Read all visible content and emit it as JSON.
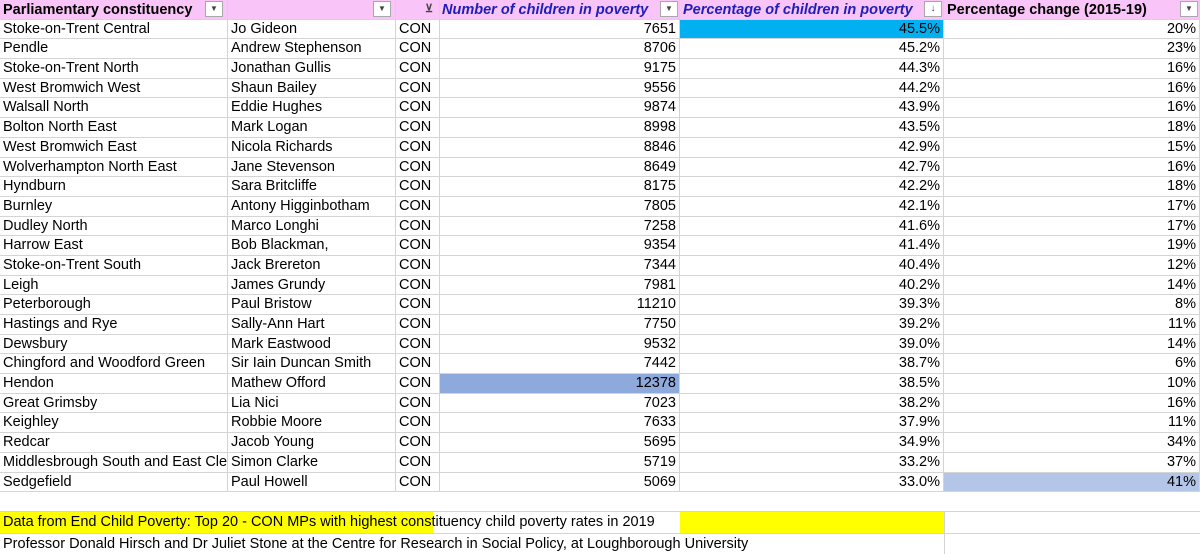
{
  "headers": {
    "constituency": "Parliamentary constituency",
    "mp": "",
    "party": "",
    "children": "Number of children in poverty",
    "percentage": "Percentage of children in poverty",
    "change": "Percentage change (2015-19)"
  },
  "rows": [
    {
      "constituency": "Stoke-on-Trent Central",
      "mp": "Jo Gideon",
      "party": "CON",
      "children": "7651",
      "percentage": "45.5%",
      "change": "20%"
    },
    {
      "constituency": "Pendle",
      "mp": "Andrew Stephenson",
      "party": "CON",
      "children": "8706",
      "percentage": "45.2%",
      "change": "23%"
    },
    {
      "constituency": "Stoke-on-Trent North",
      "mp": "Jonathan Gullis",
      "party": "CON",
      "children": "9175",
      "percentage": "44.3%",
      "change": "16%"
    },
    {
      "constituency": "West Bromwich West",
      "mp": "Shaun Bailey",
      "party": "CON",
      "children": "9556",
      "percentage": "44.2%",
      "change": "16%"
    },
    {
      "constituency": "Walsall North",
      "mp": "Eddie Hughes",
      "party": "CON",
      "children": "9874",
      "percentage": "43.9%",
      "change": "16%"
    },
    {
      "constituency": "Bolton North East",
      "mp": "Mark Logan",
      "party": "CON",
      "children": "8998",
      "percentage": "43.5%",
      "change": "18%"
    },
    {
      "constituency": "West Bromwich East",
      "mp": "Nicola Richards",
      "party": "CON",
      "children": "8846",
      "percentage": "42.9%",
      "change": "15%"
    },
    {
      "constituency": "Wolverhampton North East",
      "mp": "Jane Stevenson",
      "party": "CON",
      "children": "8649",
      "percentage": "42.7%",
      "change": "16%"
    },
    {
      "constituency": "Hyndburn",
      "mp": "Sara Britcliffe",
      "party": "CON",
      "children": "8175",
      "percentage": "42.2%",
      "change": "18%"
    },
    {
      "constituency": "Burnley",
      "mp": "Antony Higginbotham",
      "party": "CON",
      "children": "7805",
      "percentage": "42.1%",
      "change": "17%"
    },
    {
      "constituency": "Dudley North",
      "mp": "Marco Longhi",
      "party": "CON",
      "children": "7258",
      "percentage": "41.6%",
      "change": "17%"
    },
    {
      "constituency": "Harrow East",
      "mp": "Bob Blackman,",
      "party": "CON",
      "children": "9354",
      "percentage": "41.4%",
      "change": "19%"
    },
    {
      "constituency": "Stoke-on-Trent South",
      "mp": "Jack Brereton",
      "party": "CON",
      "children": "7344",
      "percentage": "40.4%",
      "change": "12%"
    },
    {
      "constituency": "Leigh",
      "mp": "James Grundy",
      "party": "CON",
      "children": "7981",
      "percentage": "40.2%",
      "change": "14%"
    },
    {
      "constituency": "Peterborough",
      "mp": "Paul Bristow",
      "party": "CON",
      "children": "11210",
      "percentage": "39.3%",
      "change": "8%"
    },
    {
      "constituency": "Hastings and Rye",
      "mp": "Sally-Ann Hart",
      "party": "CON",
      "children": "7750",
      "percentage": "39.2%",
      "change": "11%"
    },
    {
      "constituency": "Dewsbury",
      "mp": "Mark Eastwood",
      "party": "CON",
      "children": "9532",
      "percentage": "39.0%",
      "change": "14%"
    },
    {
      "constituency": "Chingford and Woodford Green",
      "mp": "Sir Iain Duncan Smith",
      "party": "CON",
      "children": "7442",
      "percentage": "38.7%",
      "change": "6%"
    },
    {
      "constituency": "Hendon",
      "mp": "Mathew Offord",
      "party": "CON",
      "children": "12378",
      "percentage": "38.5%",
      "change": "10%"
    },
    {
      "constituency": "Great Grimsby",
      "mp": "Lia Nici",
      "party": "CON",
      "children": "7023",
      "percentage": "38.2%",
      "change": "16%"
    },
    {
      "constituency": "Keighley",
      "mp": "Robbie Moore",
      "party": "CON",
      "children": "7633",
      "percentage": "37.9%",
      "change": "11%"
    },
    {
      "constituency": "Redcar",
      "mp": "Jacob Young",
      "party": "CON",
      "children": "5695",
      "percentage": "34.9%",
      "change": "34%"
    },
    {
      "constituency": "Middlesbrough South and East Cleveland",
      "mp": "Simon Clarke",
      "party": "CON",
      "children": "5719",
      "percentage": "33.2%",
      "change": "37%"
    },
    {
      "constituency": "Sedgefield",
      "mp": "Paul Howell",
      "party": "CON",
      "children": "5069",
      "percentage": "33.0%",
      "change": "41%"
    }
  ],
  "highlights": {
    "max_percentage_color": "#00b0f0",
    "max_children_color": "#8ea9db",
    "max_change_color": "#b4c6e7",
    "note_color": "#ffff00"
  },
  "notes": {
    "source": "Data from End Child Poverty: Top 20 - CON MPs with highest constituency child poverty rates in 2019",
    "credit": "Professor Donald Hirsch and Dr Juliet Stone at the Centre for Research in Social Policy, at Loughborough University"
  }
}
